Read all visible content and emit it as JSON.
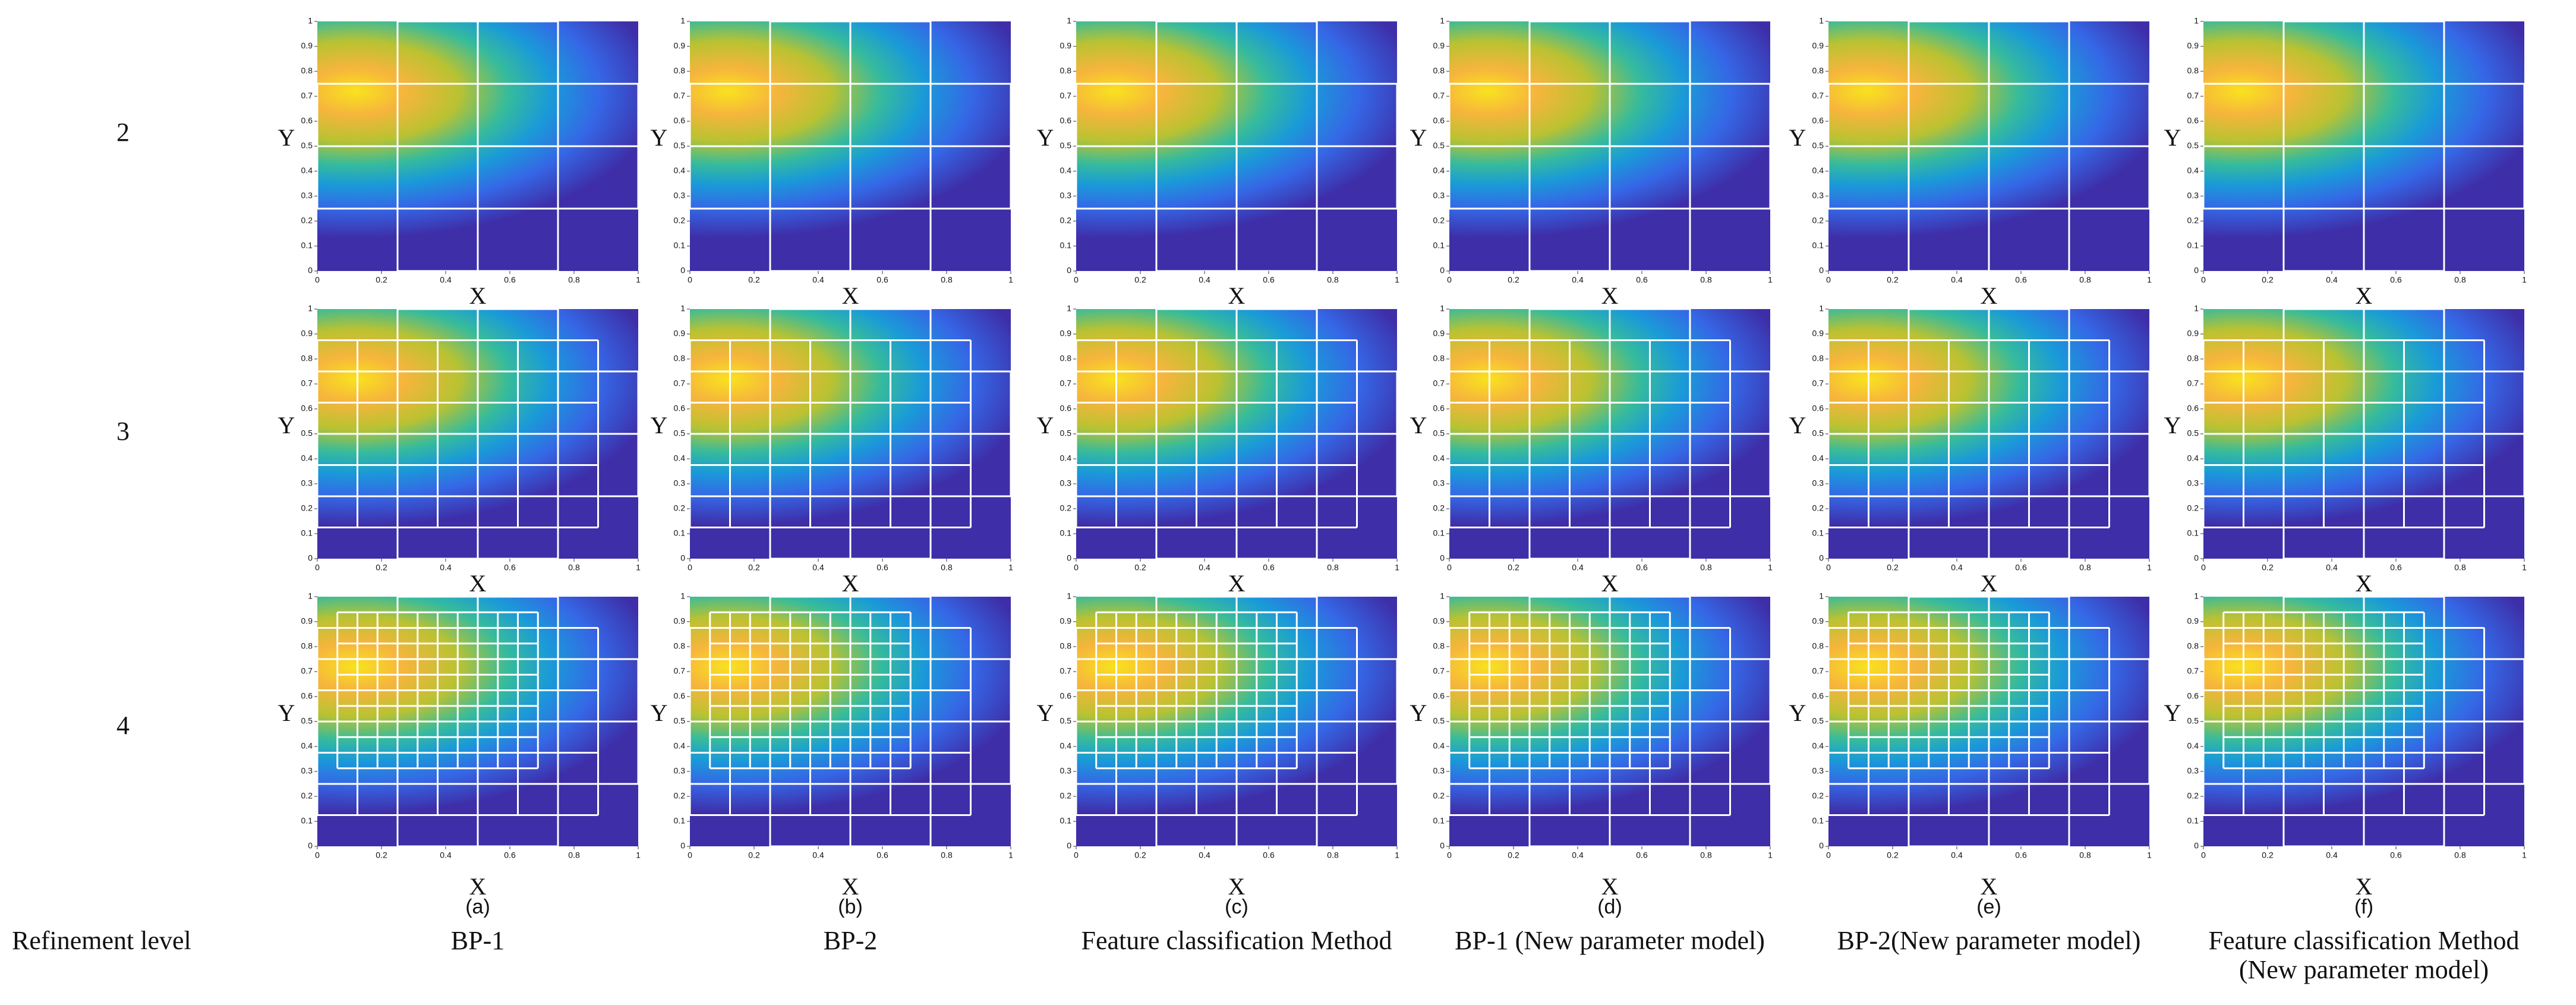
{
  "row_header": "Refinement level",
  "row_labels": [
    "2",
    "3",
    "4"
  ],
  "columns": [
    {
      "letter": "(a)",
      "method": "BP-1"
    },
    {
      "letter": "(b)",
      "method": "BP-2"
    },
    {
      "letter": "(c)",
      "method": "Feature classification Method"
    },
    {
      "letter": "(d)",
      "method": "BP-1 (New  parameter model)"
    },
    {
      "letter": "(e)",
      "method": "BP-2(New parameter model)"
    },
    {
      "letter": "(f)",
      "method": "Feature classification Method",
      "method_line2": "(New  parameter model)"
    }
  ],
  "axes": {
    "x_label": "X",
    "y_label": "Y",
    "xticks": [
      0,
      0.2,
      0.4,
      0.6,
      0.8,
      1
    ],
    "yticks": [
      0,
      0.1,
      0.2,
      0.3,
      0.4,
      0.5,
      0.6,
      0.7,
      0.8,
      0.9,
      1
    ]
  }
}
